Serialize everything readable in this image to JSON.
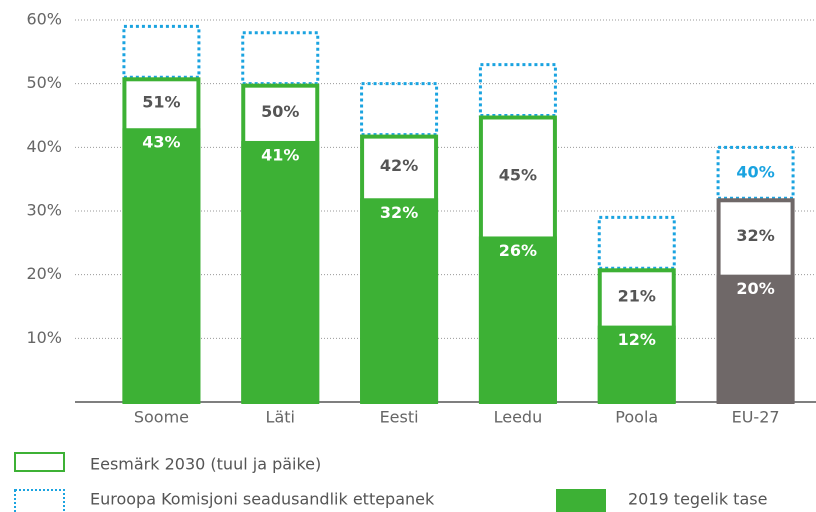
{
  "chart_data": {
    "type": "bar",
    "categories": [
      "Soome",
      "Läti",
      "Eesti",
      "Leedu",
      "Poola",
      "EU-27"
    ],
    "series": [
      {
        "name": "Eesmärk 2030 (tuul ja päike)",
        "colors": [
          "#3db135",
          "#3db135",
          "#3db135",
          "#3db135",
          "#3db135",
          "#6f6868"
        ],
        "values": [
          51,
          50,
          42,
          45,
          21,
          32
        ],
        "value_labels": [
          "51%",
          "50%",
          "42%",
          "45%",
          "21%",
          "32%"
        ]
      },
      {
        "name": "Euroopa Komisjoni seadusandlik ettepanek",
        "color": "#1aa3e0",
        "values": [
          59,
          58,
          50,
          53,
          29,
          40
        ],
        "value_labels": [
          null,
          null,
          null,
          null,
          null,
          "40%"
        ]
      },
      {
        "name": "2019 tegelik tase",
        "colors": [
          "#3db135",
          "#3db135",
          "#3db135",
          "#3db135",
          "#3db135",
          "#6f6868"
        ],
        "values": [
          43,
          41,
          32,
          26,
          12,
          20
        ],
        "value_labels": [
          "43%",
          "41%",
          "32%",
          "26%",
          "12%",
          "20%"
        ]
      }
    ],
    "ylim": [
      0,
      60
    ],
    "yticks": [
      {
        "value": 10,
        "label": "10%"
      },
      {
        "value": 20,
        "label": "20%"
      },
      {
        "value": 30,
        "label": "30%"
      },
      {
        "value": 40,
        "label": "40%"
      },
      {
        "value": 50,
        "label": "50%"
      },
      {
        "value": 60,
        "label": "60%"
      }
    ],
    "grid": true
  }
}
